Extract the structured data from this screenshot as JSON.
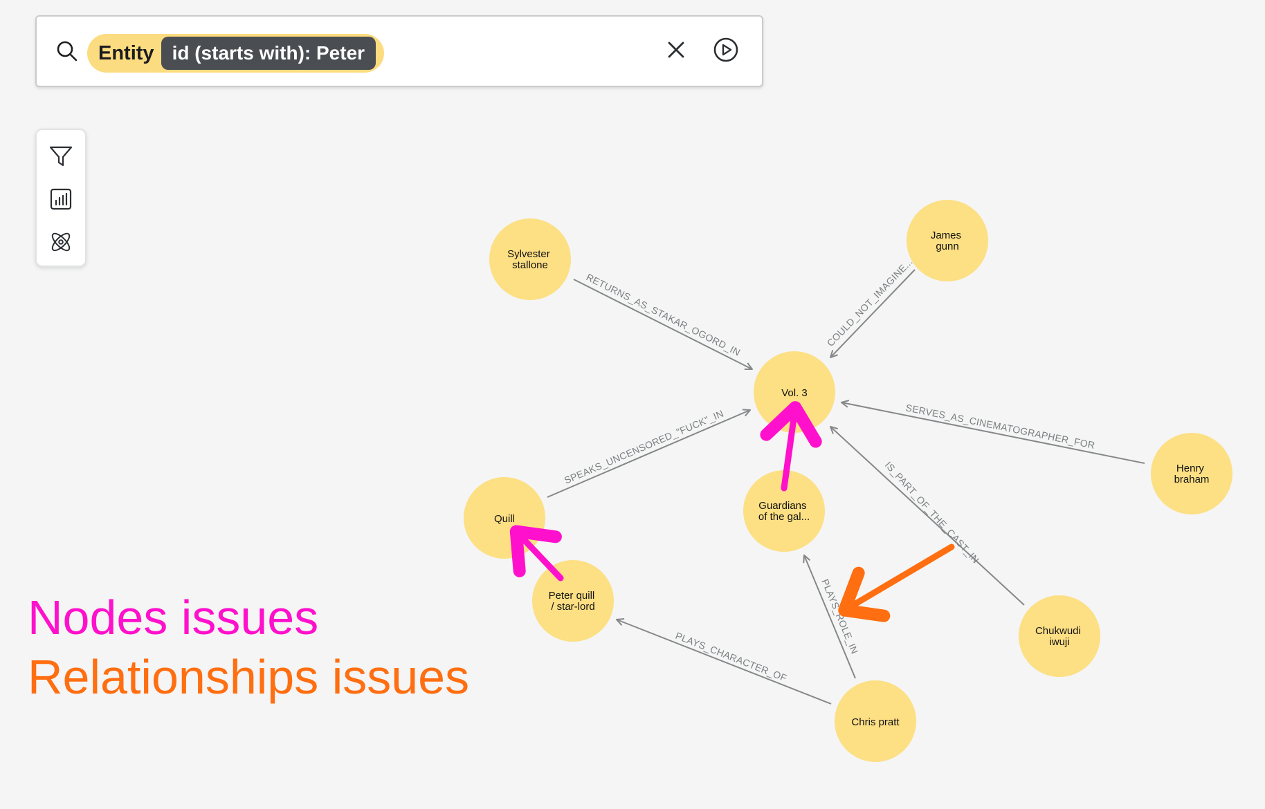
{
  "search": {
    "entity_label": "Entity",
    "filter_tag": "id (starts with): Peter",
    "icon": "search-icon",
    "clear_icon": "close-icon",
    "run_icon": "play-circle-icon"
  },
  "toolbar": {
    "items": [
      {
        "icon": "filter-icon"
      },
      {
        "icon": "chart-icon"
      },
      {
        "icon": "atom-icon"
      }
    ]
  },
  "graph": {
    "node_color": "#fddf84",
    "edge_color": "#858789",
    "nodes": [
      {
        "id": "sylvester",
        "lines": [
          "Sylvester",
          "stallone"
        ]
      },
      {
        "id": "james",
        "lines": [
          "James",
          "gunn"
        ]
      },
      {
        "id": "vol3",
        "lines": [
          "Vol. 3"
        ]
      },
      {
        "id": "henry",
        "lines": [
          "Henry",
          "braham"
        ]
      },
      {
        "id": "quill",
        "lines": [
          "Quill"
        ]
      },
      {
        "id": "guardians",
        "lines": [
          "Guardians",
          "of the gal..."
        ]
      },
      {
        "id": "peterquill",
        "lines": [
          "Peter quill",
          "/ star-lord"
        ]
      },
      {
        "id": "chukwudi",
        "lines": [
          "Chukwudi",
          "iwuji"
        ]
      },
      {
        "id": "chrispratt",
        "lines": [
          "Chris pratt"
        ]
      }
    ],
    "edges": [
      {
        "from": "sylvester",
        "to": "vol3",
        "label": "RETURNS_AS_STAKAR_OGORD_IN"
      },
      {
        "from": "james",
        "to": "vol3",
        "label": "COULD_NOT_IMAGINE..."
      },
      {
        "from": "henry",
        "to": "vol3",
        "label": "SERVES_AS_CINEMATOGRAPHER_FOR"
      },
      {
        "from": "quill",
        "to": "vol3",
        "label": "SPEAKS_UNCENSORED_\"FUCK\"_IN"
      },
      {
        "from": "chukwudi",
        "to": "vol3",
        "label": "IS_PART_OF_THE_CAST_IN"
      },
      {
        "from": "chrispratt",
        "to": "guardians",
        "label": "PLAYS_ROLE_IN"
      },
      {
        "from": "chrispratt",
        "to": "peterquill",
        "label": "PLAYS_CHARACTER_OF"
      }
    ]
  },
  "annotations": {
    "nodes_color": "#ff10cc",
    "relationships_color": "#ff6e10"
  },
  "legend": {
    "nodes_issues": "Nodes issues",
    "relationships_issues": "Relationships issues",
    "nodes_color": "#ff10cc",
    "relationships_color": "#ff6e10"
  }
}
